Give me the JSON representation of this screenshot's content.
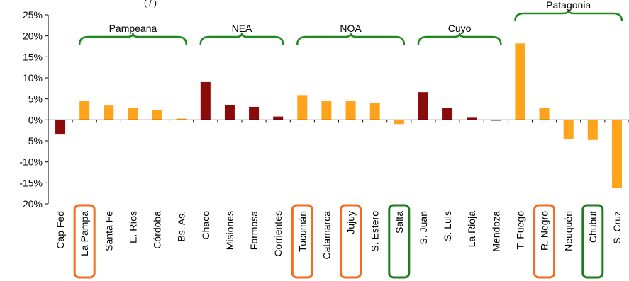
{
  "chart_data": {
    "type": "bar",
    "title": "",
    "xlabel": "",
    "ylabel": "",
    "ylim": [
      -0.2,
      0.25
    ],
    "y_ticks": [
      "25%",
      "20%",
      "15%",
      "10%",
      "5%",
      "0%",
      "-5%",
      "-10%",
      "-15%",
      "-20%"
    ],
    "categories": [
      "Cap Fed",
      "La Pampa",
      "Santa Fe",
      "E. Ríos",
      "Córdoba",
      "Bs. As.",
      "Chaco",
      "Misiones",
      "Formosa",
      "Corrientes",
      "Tucumán",
      "Catamarca",
      "Jujuy",
      "S. Estero",
      "Salta",
      "S. Juan",
      "S. Luis",
      "La Rioja",
      "Mendoza",
      "T. Fuego",
      "R. Negro",
      "Neuquén",
      "Chubut",
      "S. Cruz"
    ],
    "values": [
      -0.035,
      0.046,
      0.034,
      0.029,
      0.024,
      0.003,
      0.09,
      0.036,
      0.031,
      0.008,
      0.059,
      0.046,
      0.045,
      0.041,
      -0.01,
      0.066,
      0.029,
      0.005,
      -0.002,
      0.182,
      0.029,
      -0.045,
      -0.048,
      -0.162
    ],
    "bar_colors": [
      "#8B0A0A",
      "#FFA31A",
      "#FFA31A",
      "#FFA31A",
      "#FFA31A",
      "#FFA31A",
      "#8B0A0A",
      "#8B0A0A",
      "#8B0A0A",
      "#8B0A0A",
      "#FFA31A",
      "#FFA31A",
      "#FFA31A",
      "#FFA31A",
      "#FFA31A",
      "#8B0A0A",
      "#8B0A0A",
      "#8B0A0A",
      "#8B0A0A",
      "#FFA31A",
      "#FFA31A",
      "#FFA31A",
      "#FFA31A",
      "#FFA31A"
    ],
    "regions": [
      {
        "label": "Pampeana",
        "from": 1,
        "to": 5
      },
      {
        "label": "NEA",
        "from": 6,
        "to": 9
      },
      {
        "label": "NOA",
        "from": 10,
        "to": 14
      },
      {
        "label": "Cuyo",
        "from": 15,
        "to": 18
      },
      {
        "label": "Patagonia",
        "from": 19,
        "to": 23
      }
    ],
    "highlights": [
      {
        "index": 1,
        "color": "#F36C21"
      },
      {
        "index": 10,
        "color": "#F36C21"
      },
      {
        "index": 12,
        "color": "#F36C21"
      },
      {
        "index": 14,
        "color": "#1E7B1E"
      },
      {
        "index": 20,
        "color": "#F36C21"
      },
      {
        "index": 22,
        "color": "#1E7B1E"
      }
    ],
    "bracket_color": "#1E8A1E",
    "partial_title": "(  /   )"
  }
}
